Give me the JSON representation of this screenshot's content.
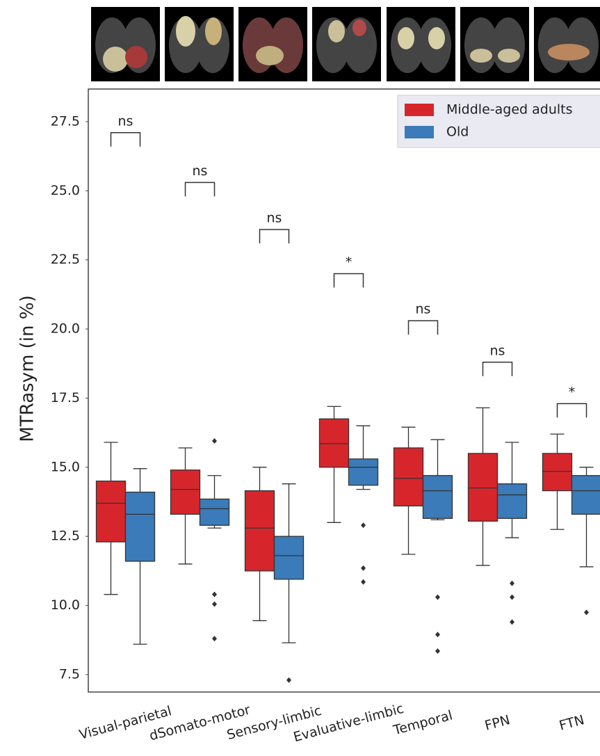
{
  "chart_data": {
    "type": "box",
    "y_label": "MTRasym (in %)",
    "categories": [
      "Visual-parietal",
      "dSomato-motor",
      "Sensory-limbic",
      "Evaluative-limbic",
      "Temporal",
      "FPN",
      "FTN"
    ],
    "ylim": [
      6.87,
      28.68
    ],
    "yticks": [
      7.5,
      {
        "value": 10,
        "label": "10.0"
      },
      12.5,
      {
        "value": 15,
        "label": "15.0"
      },
      17.5,
      {
        "value": 20,
        "label": "20.0"
      },
      22.5,
      {
        "value": 25,
        "label": "25.0"
      },
      27.5
    ],
    "legend_position": "upper right",
    "series": [
      {
        "name": "Middle-aged adults",
        "color": "#d7262b",
        "boxes": [
          {
            "min": 10.4,
            "q1": 12.3,
            "median": 13.7,
            "q3": 14.5,
            "max": 15.9,
            "outliers": []
          },
          {
            "min": 11.5,
            "q1": 13.3,
            "median": 14.2,
            "q3": 14.9,
            "max": 15.7,
            "outliers": []
          },
          {
            "min": 9.45,
            "q1": 11.25,
            "median": 12.8,
            "q3": 14.15,
            "max": 15.0,
            "outliers": []
          },
          {
            "min": 13.0,
            "q1": 15.0,
            "median": 15.85,
            "q3": 16.75,
            "max": 17.2,
            "outliers": []
          },
          {
            "min": 11.85,
            "q1": 13.6,
            "median": 14.6,
            "q3": 15.7,
            "max": 16.45,
            "outliers": []
          },
          {
            "min": 11.45,
            "q1": 13.05,
            "median": 14.25,
            "q3": 15.5,
            "max": 17.15,
            "outliers": []
          },
          {
            "min": 12.75,
            "q1": 14.15,
            "median": 14.85,
            "q3": 15.5,
            "max": 16.2,
            "outliers": []
          }
        ]
      },
      {
        "name": "Old",
        "color": "#3b7bb9",
        "boxes": [
          {
            "min": 8.6,
            "q1": 11.6,
            "median": 13.3,
            "q3": 14.1,
            "max": 14.95,
            "outliers": []
          },
          {
            "min": 12.8,
            "q1": 12.9,
            "median": 13.5,
            "q3": 13.85,
            "max": 14.7,
            "outliers": [
              15.95,
              10.4,
              10.05,
              8.8
            ]
          },
          {
            "min": 8.65,
            "q1": 10.95,
            "median": 11.8,
            "q3": 12.5,
            "max": 14.4,
            "outliers": [
              7.3
            ]
          },
          {
            "min": 14.2,
            "q1": 14.35,
            "median": 15.0,
            "q3": 15.3,
            "max": 16.5,
            "outliers": [
              12.9,
              11.35,
              10.85
            ]
          },
          {
            "min": 13.1,
            "q1": 13.15,
            "median": 14.15,
            "q3": 14.7,
            "max": 16.0,
            "outliers": [
              10.3,
              8.95,
              8.35
            ]
          },
          {
            "min": 12.45,
            "q1": 13.15,
            "median": 14.0,
            "q3": 14.4,
            "max": 15.9,
            "outliers": [
              10.8,
              10.3,
              9.4
            ]
          },
          {
            "min": 11.4,
            "q1": 13.3,
            "median": 14.15,
            "q3": 14.7,
            "max": 15.0,
            "outliers": [
              9.75
            ]
          }
        ]
      }
    ],
    "annotations": [
      {
        "text": "ns",
        "y": 27.1
      },
      {
        "text": "ns",
        "y": 25.3
      },
      {
        "text": "ns",
        "y": 23.6
      },
      {
        "text": "*",
        "y": 22.0
      },
      {
        "text": "ns",
        "y": 20.3
      },
      {
        "text": "ns",
        "y": 18.8
      },
      {
        "text": "*",
        "y": 17.3
      }
    ]
  }
}
